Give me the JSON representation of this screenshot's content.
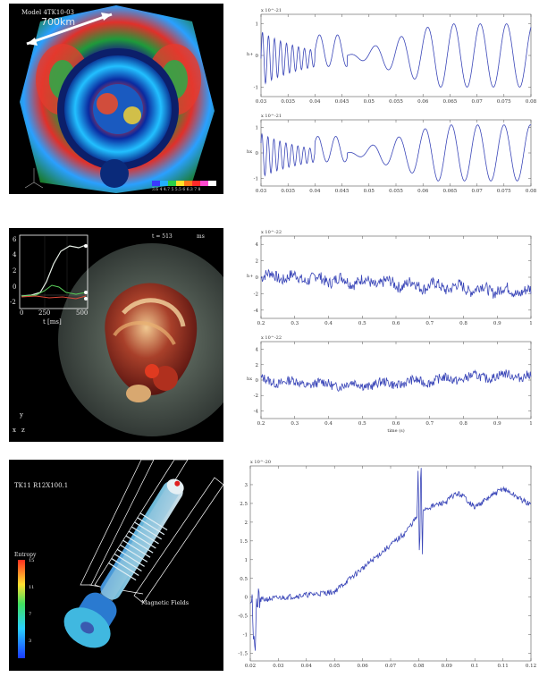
{
  "panels": {
    "sim1": {
      "model_label": "Model 4TK10-03",
      "scale_label": "700km",
      "colorbar_ticks": "3.6 4 4.7 5 5.5 6 6.3 7 8"
    },
    "sim2": {
      "time_label": "t = 513",
      "time_unit": "ms",
      "inset_xlabel": "t [ms]",
      "inset_xticks": [
        "0",
        "250",
        "500"
      ],
      "inset_yticks": [
        "6",
        "4",
        "2",
        "0",
        "-2"
      ],
      "axis_y": "y",
      "axis_x": "x",
      "axis_z": "z"
    },
    "sim3": {
      "model_label": "TK11 R12X100.1",
      "colorbar_title": "Entropy",
      "colorbar_ticks": [
        "15",
        "11",
        "7",
        "3"
      ],
      "field_label": "Magnetic Fields"
    }
  },
  "chart_data": [
    {
      "id": "gw1a",
      "type": "line",
      "ylabel": "h+",
      "exponent": "x 10^-21",
      "xlim": [
        0.03,
        0.08
      ],
      "ylim": [
        -1.3,
        1.3
      ],
      "xticks": [
        "0.03",
        "0.035",
        "0.04",
        "0.045",
        "0.05",
        "0.055",
        "0.06",
        "0.065",
        "0.07",
        "0.075",
        "0.08"
      ],
      "yticks": [
        "1",
        "0",
        "-1"
      ]
    },
    {
      "id": "gw1b",
      "type": "line",
      "ylabel": "hx",
      "exponent": "x 10^-21",
      "xlim": [
        0.03,
        0.08
      ],
      "ylim": [
        -1.3,
        1.3
      ],
      "xticks": [
        "0.03",
        "0.035",
        "0.04",
        "0.045",
        "0.05",
        "0.055",
        "0.06",
        "0.065",
        "0.07",
        "0.075",
        "0.08"
      ],
      "yticks": [
        "1",
        "0",
        "-1"
      ]
    },
    {
      "id": "gw2a",
      "type": "line",
      "ylabel": "h+",
      "exponent": "x 10^-22",
      "xlim": [
        0.2,
        1.0
      ],
      "ylim": [
        -5,
        5
      ],
      "xticks": [
        "0.2",
        "0.3",
        "0.4",
        "0.5",
        "0.6",
        "0.7",
        "0.8",
        "0.9",
        "1"
      ],
      "yticks": [
        "4",
        "2",
        "0",
        "-2",
        "-4"
      ]
    },
    {
      "id": "gw2b",
      "type": "line",
      "ylabel": "hx",
      "exponent": "x 10^-22",
      "xlabel": "time (s)",
      "xlim": [
        0.2,
        1.0
      ],
      "ylim": [
        -5,
        5
      ],
      "xticks": [
        "0.2",
        "0.3",
        "0.4",
        "0.5",
        "0.6",
        "0.7",
        "0.8",
        "0.9",
        "1"
      ],
      "yticks": [
        "4",
        "2",
        "0",
        "-2",
        "-4"
      ]
    },
    {
      "id": "gw3",
      "type": "line",
      "exponent": "x 10^-20",
      "xlim": [
        0.02,
        0.12
      ],
      "ylim": [
        -1.7,
        3.5
      ],
      "xticks": [
        "0.02",
        "0.03",
        "0.04",
        "0.05",
        "0.06",
        "0.07",
        "0.08",
        "0.09",
        "0.1",
        "0.11",
        "0.12"
      ],
      "yticks": [
        "3",
        "2.5",
        "2",
        "1.5",
        "1",
        "0.5",
        "0",
        "-0.5",
        "-1",
        "-1.5"
      ]
    }
  ]
}
